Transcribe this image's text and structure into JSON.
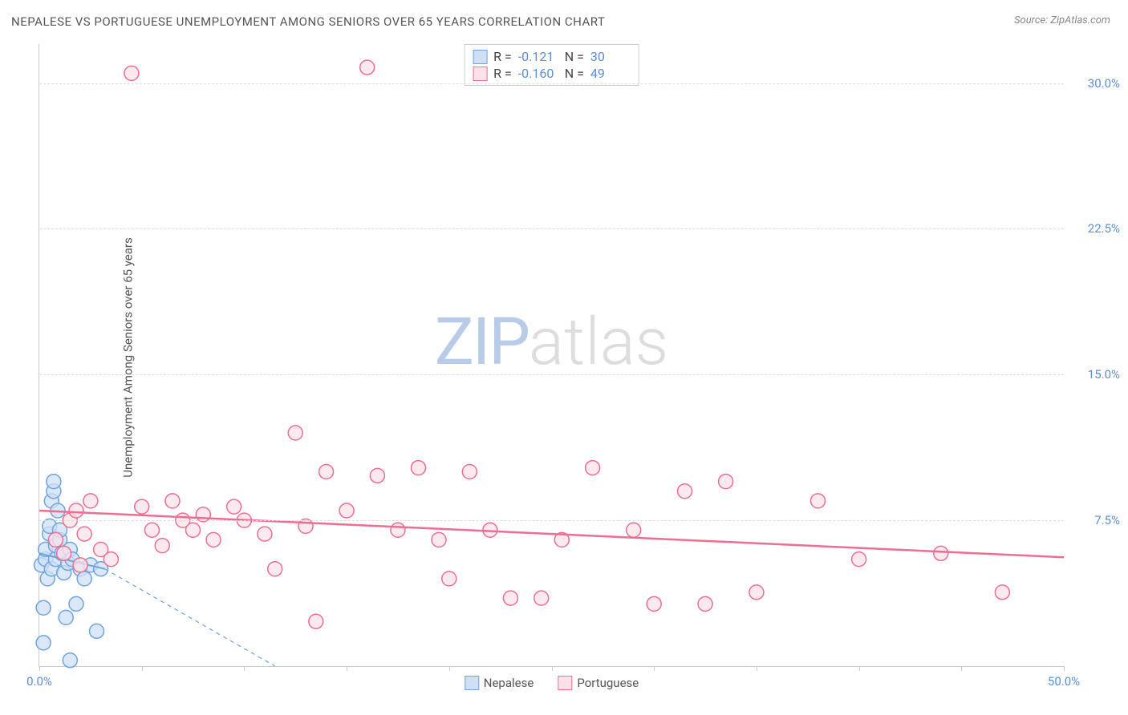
{
  "title": "NEPALESE VS PORTUGUESE UNEMPLOYMENT AMONG SENIORS OVER 65 YEARS CORRELATION CHART",
  "source": "Source: ZipAtlas.com",
  "y_axis_label": "Unemployment Among Seniors over 65 years",
  "watermark_zip": "ZIP",
  "watermark_atlas": "atlas",
  "chart": {
    "type": "scatter",
    "xlim": [
      0,
      50
    ],
    "ylim": [
      0,
      32
    ],
    "x_ticks": [
      0,
      5,
      10,
      15,
      20,
      25,
      30,
      35,
      40,
      45,
      50
    ],
    "x_tick_labels": {
      "0": "0.0%",
      "50": "50.0%"
    },
    "y_ticks": [
      7.5,
      15.0,
      22.5,
      30.0
    ],
    "y_tick_labels": [
      "7.5%",
      "15.0%",
      "22.5%",
      "30.0%"
    ],
    "grid_color": "#dddddd",
    "background_color": "#ffffff",
    "marker_radius": 9,
    "marker_stroke_width": 1.5,
    "series": [
      {
        "name": "Nepalese",
        "fill": "#cfe0f5",
        "stroke": "#6fa3e0",
        "r_value": "-0.121",
        "n_value": "30",
        "trend": {
          "x1": 0,
          "y1": 5.8,
          "x2": 3.2,
          "y2": 5.0,
          "solid_until_x": 3.2,
          "dash_to_x": 11.5,
          "dash_to_y": 0,
          "stroke_width": 2
        },
        "points": [
          [
            0.1,
            5.2
          ],
          [
            0.2,
            3.0
          ],
          [
            0.3,
            5.5
          ],
          [
            0.3,
            6.0
          ],
          [
            0.4,
            4.5
          ],
          [
            0.5,
            6.8
          ],
          [
            0.5,
            7.2
          ],
          [
            0.6,
            5.0
          ],
          [
            0.6,
            8.5
          ],
          [
            0.7,
            9.0
          ],
          [
            0.7,
            9.5
          ],
          [
            0.8,
            5.5
          ],
          [
            0.8,
            6.2
          ],
          [
            0.9,
            8.0
          ],
          [
            1.0,
            6.5
          ],
          [
            1.0,
            7.0
          ],
          [
            1.1,
            5.8
          ],
          [
            1.2,
            4.8
          ],
          [
            1.3,
            2.5
          ],
          [
            1.4,
            5.3
          ],
          [
            1.5,
            6.0
          ],
          [
            1.6,
            5.5
          ],
          [
            1.8,
            3.2
          ],
          [
            2.0,
            5.0
          ],
          [
            2.2,
            4.5
          ],
          [
            2.5,
            5.2
          ],
          [
            2.8,
            1.8
          ],
          [
            3.0,
            5.0
          ],
          [
            1.5,
            0.3
          ],
          [
            0.2,
            1.2
          ]
        ]
      },
      {
        "name": "Portuguese",
        "fill": "#fce1e8",
        "stroke": "#ec6f92",
        "r_value": "-0.160",
        "n_value": "49",
        "trend": {
          "x1": 0,
          "y1": 8.0,
          "x2": 50,
          "y2": 5.6,
          "stroke_width": 2.5
        },
        "points": [
          [
            0.8,
            6.5
          ],
          [
            1.2,
            5.8
          ],
          [
            1.5,
            7.5
          ],
          [
            1.8,
            8.0
          ],
          [
            2.0,
            5.2
          ],
          [
            2.2,
            6.8
          ],
          [
            2.5,
            8.5
          ],
          [
            3.0,
            6.0
          ],
          [
            3.5,
            5.5
          ],
          [
            4.5,
            30.5
          ],
          [
            5.0,
            8.2
          ],
          [
            5.5,
            7.0
          ],
          [
            6.0,
            6.2
          ],
          [
            6.5,
            8.5
          ],
          [
            7.0,
            7.5
          ],
          [
            7.5,
            7.0
          ],
          [
            8.0,
            7.8
          ],
          [
            8.5,
            6.5
          ],
          [
            9.5,
            8.2
          ],
          [
            10.0,
            7.5
          ],
          [
            11.0,
            6.8
          ],
          [
            11.5,
            5.0
          ],
          [
            12.5,
            12.0
          ],
          [
            13.0,
            7.2
          ],
          [
            13.5,
            2.3
          ],
          [
            14.0,
            10.0
          ],
          [
            15.0,
            8.0
          ],
          [
            16.5,
            9.8
          ],
          [
            17.5,
            7.0
          ],
          [
            18.5,
            10.2
          ],
          [
            19.5,
            6.5
          ],
          [
            20.0,
            4.5
          ],
          [
            21.0,
            10.0
          ],
          [
            22.0,
            7.0
          ],
          [
            23.0,
            3.5
          ],
          [
            24.5,
            3.5
          ],
          [
            25.5,
            6.5
          ],
          [
            27.0,
            10.2
          ],
          [
            29.0,
            7.0
          ],
          [
            30.0,
            3.2
          ],
          [
            31.5,
            9.0
          ],
          [
            32.5,
            3.2
          ],
          [
            33.5,
            9.5
          ],
          [
            35.0,
            3.8
          ],
          [
            38.0,
            8.5
          ],
          [
            40.0,
            5.5
          ],
          [
            44.0,
            5.8
          ],
          [
            47.0,
            3.8
          ],
          [
            16.0,
            30.8
          ]
        ]
      }
    ]
  },
  "legend_bottom": [
    "Nepalese",
    "Portuguese"
  ]
}
